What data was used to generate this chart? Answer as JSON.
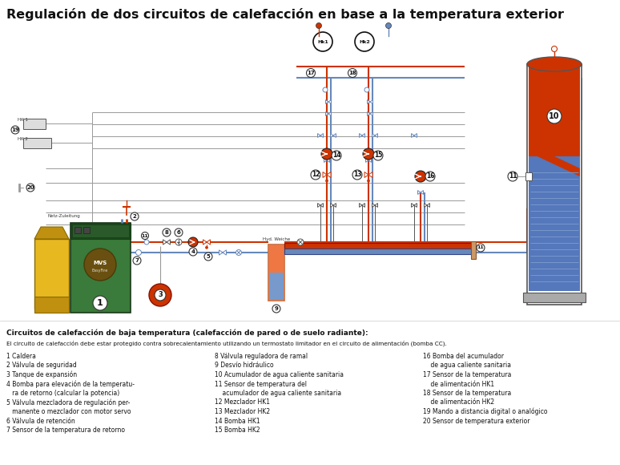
{
  "title": "Regulación de dos circuitos de calefacción en base a la temperatura exterior",
  "background_color": "#ffffff",
  "subtitle_bold": "Circuitos de calefacción de baja temperatura (calefacción de pared o de suelo radiante):",
  "subtitle_text": "El circuito de calefacción debe estar protegido contra sobrecalentamiento utilizando un termostato limitador en el circuito de alimentación (bomba CC).",
  "legend_col1": [
    "1 Caldera",
    "2 Válvula de seguridad",
    "3 Tanque de expansión",
    "4 Bomba para elevación de la temperatu-",
    "   ra de retorno (calcular la potencia)",
    "5 Válvula mezcladora de regulación per-",
    "   manente o mezclador con motor servo",
    "6 Válvula de retención",
    "7 Sensor de la temperatura de retorno"
  ],
  "legend_col2": [
    "8 Válvula reguladora de ramal",
    "9 Desvío hidráulico",
    "10 Acumulador de agua caliente sanitaria",
    "11 Sensor de temperatura del",
    "    acumulador de agua caliente sanitaria",
    "12 Mezclador HK1",
    "13 Mezclador HK2",
    "14 Bomba HK1",
    "15 Bomba HK2"
  ],
  "legend_col3": [
    "16 Bomba del acumulador",
    "    de agua caliente sanitaria",
    "17 Sensor de la temperatura",
    "    de alimentación HK1",
    "18 Sensor de la temperatura",
    "    de alimentación HK2",
    "19 Mando a distancia digital o analógico",
    "20 Sensor de temperatura exterior"
  ],
  "sup": "#cc3300",
  "ret": "#6688bb",
  "gray": "#999999",
  "lgray": "#cccccc",
  "boiler_green": "#3a7a3a",
  "boiler_dark": "#1a4a1a",
  "boiler_yellow": "#e8b820",
  "boiler_dyellow": "#c09010"
}
